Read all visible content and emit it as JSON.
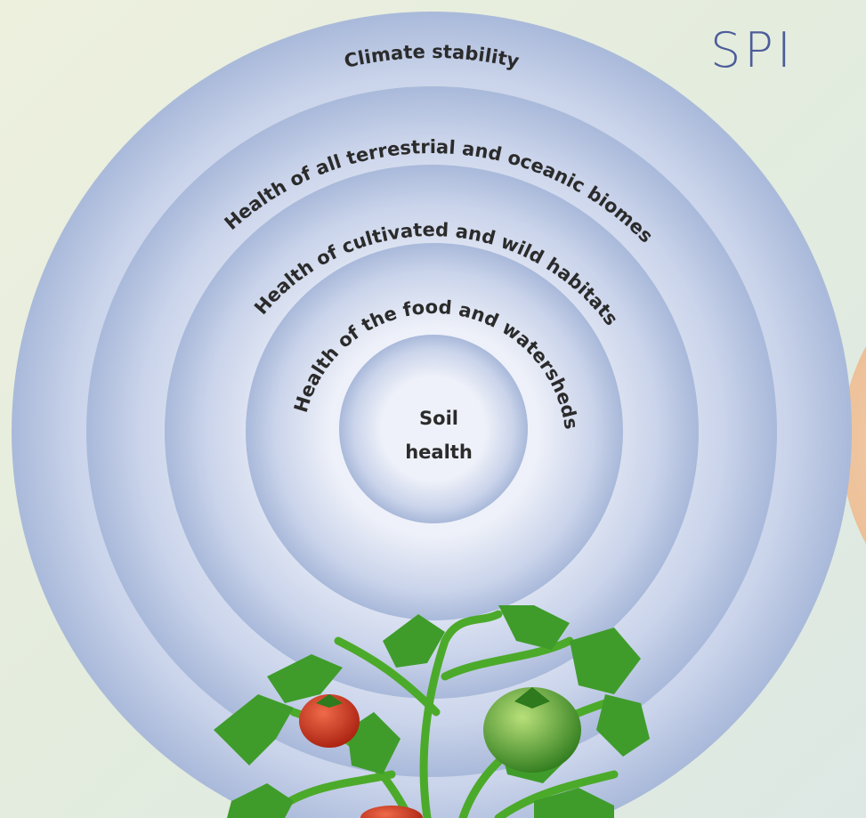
{
  "header": {
    "title": "SPI"
  },
  "rings": [
    {
      "label": "Climate stability"
    },
    {
      "label": "Health of all terrestrial and oceanic biomes"
    },
    {
      "label": "Health of cultivated and wild habitats"
    },
    {
      "label": "Health of the food and watersheds"
    }
  ],
  "center": {
    "lines": [
      "Soil",
      "health"
    ]
  }
}
